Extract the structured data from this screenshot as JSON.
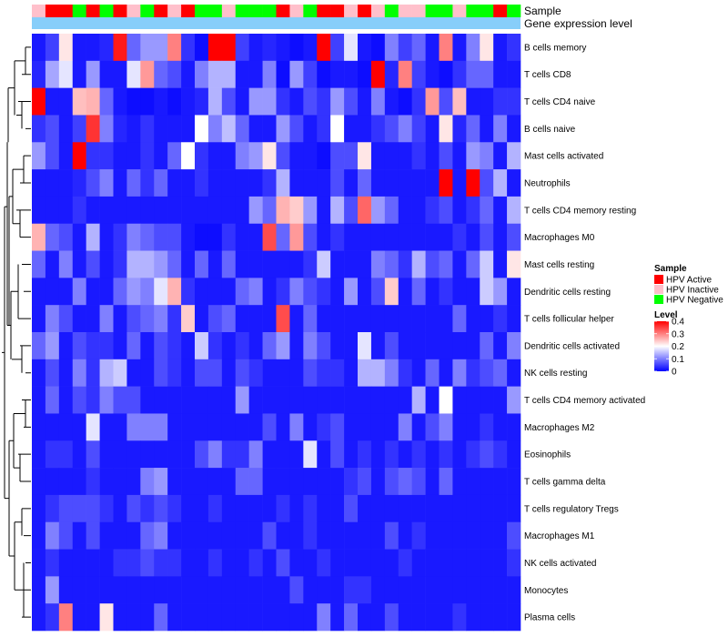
{
  "chart_data": {
    "type": "heatmap",
    "annotations": {
      "sample_label": "Sample",
      "expr_label": "Gene expression level",
      "sample_groups": [
        "Inactive",
        "Active",
        "Active",
        "Negative",
        "Active",
        "Negative",
        "Active",
        "Inactive",
        "Negative",
        "Active",
        "Inactive",
        "Active",
        "Negative",
        "Negative",
        "Inactive",
        "Negative",
        "Negative",
        "Negative",
        "Active",
        "Inactive",
        "Negative",
        "Active",
        "Active",
        "Inactive",
        "Active",
        "Inactive",
        "Negative",
        "Inactive",
        "Inactive",
        "Negative",
        "Negative",
        "Inactive",
        "Negative",
        "Negative",
        "Active",
        "Negative"
      ]
    },
    "rows": [
      "B cells memory",
      "T cells CD8",
      "T cells CD4 naive",
      "B cells naive",
      "Mast cells activated",
      "Neutrophils",
      "T cells CD4 memory resting",
      "Macrophages M0",
      "Mast cells resting",
      "Dendritic cells resting",
      "T cells follicular helper",
      "Dendritic cells activated",
      "NK cells resting",
      "T cells CD4 memory activated",
      "Macrophages M2",
      "Eosinophils",
      "T cells gamma delta",
      "T cells regulatory  Tregs",
      "Macrophages M1",
      "NK cells activated",
      "Monocytes",
      "Plasma cells"
    ],
    "values": [
      [
        0.02,
        0.05,
        0.22,
        0.02,
        0.02,
        0.03,
        0.38,
        0.08,
        0.12,
        0.12,
        0.3,
        0.04,
        0.01,
        0.4,
        0.4,
        0.05,
        0.02,
        0.03,
        0.02,
        0.01,
        0.02,
        0.4,
        0.05,
        0.18,
        0.02,
        0.01,
        0.1,
        0.05,
        0.08,
        0.02,
        0.3,
        0.02,
        0.1,
        0.22,
        0.02,
        0.04
      ],
      [
        0.03,
        0.13,
        0.18,
        0.02,
        0.12,
        0.02,
        0.02,
        0.18,
        0.28,
        0.08,
        0.06,
        0.02,
        0.1,
        0.14,
        0.14,
        0.02,
        0.02,
        0.1,
        0.01,
        0.12,
        0.05,
        0.01,
        0.02,
        0.02,
        0.01,
        0.4,
        0.03,
        0.3,
        0.05,
        0.02,
        0.01,
        0.04,
        0.08,
        0.08,
        0.02,
        0.02
      ],
      [
        0.4,
        0.02,
        0.02,
        0.25,
        0.26,
        0.08,
        0.02,
        0.01,
        0.01,
        0.02,
        0.01,
        0.02,
        0.03,
        0.14,
        0.06,
        0.02,
        0.12,
        0.12,
        0.04,
        0.02,
        0.06,
        0.04,
        0.12,
        0.06,
        0.02,
        0.1,
        0.02,
        0.01,
        0.04,
        0.28,
        0.06,
        0.25,
        0.02,
        0.02,
        0.04,
        0.04
      ],
      [
        0.04,
        0.06,
        0.02,
        0.05,
        0.36,
        0.1,
        0.03,
        0.02,
        0.04,
        0.02,
        0.02,
        0.02,
        0.2,
        0.1,
        0.15,
        0.08,
        0.02,
        0.02,
        0.12,
        0.06,
        0.02,
        0.04,
        0.2,
        0.02,
        0.02,
        0.04,
        0.06,
        0.1,
        0.05,
        0.02,
        0.22,
        0.03,
        0.08,
        0.02,
        0.1,
        0.02
      ],
      [
        0.12,
        0.06,
        0.02,
        0.4,
        0.04,
        0.04,
        0.02,
        0.02,
        0.04,
        0.02,
        0.08,
        0.2,
        0.04,
        0.02,
        0.02,
        0.1,
        0.12,
        0.22,
        0.06,
        0.02,
        0.02,
        0.01,
        0.06,
        0.06,
        0.22,
        0.02,
        0.02,
        0.02,
        0.04,
        0.02,
        0.06,
        0.02,
        0.12,
        0.1,
        0.02,
        0.14
      ],
      [
        0.02,
        0.02,
        0.02,
        0.03,
        0.06,
        0.1,
        0.02,
        0.08,
        0.04,
        0.08,
        0.02,
        0.02,
        0.04,
        0.02,
        0.02,
        0.02,
        0.02,
        0.04,
        0.14,
        0.02,
        0.02,
        0.02,
        0.06,
        0.02,
        0.08,
        0.02,
        0.02,
        0.02,
        0.02,
        0.02,
        0.4,
        0.02,
        0.4,
        0.06,
        0.14,
        0.02
      ],
      [
        0.02,
        0.02,
        0.02,
        0.04,
        0.02,
        0.02,
        0.02,
        0.02,
        0.02,
        0.02,
        0.02,
        0.02,
        0.02,
        0.02,
        0.02,
        0.02,
        0.12,
        0.08,
        0.26,
        0.24,
        0.12,
        0.02,
        0.14,
        0.06,
        0.32,
        0.12,
        0.08,
        0.02,
        0.02,
        0.04,
        0.06,
        0.02,
        0.04,
        0.08,
        0.02,
        0.14
      ],
      [
        0.26,
        0.08,
        0.06,
        0.02,
        0.14,
        0.02,
        0.04,
        0.1,
        0.08,
        0.06,
        0.06,
        0.02,
        0.01,
        0.01,
        0.04,
        0.02,
        0.02,
        0.34,
        0.08,
        0.28,
        0.06,
        0.02,
        0.04,
        0.02,
        0.02,
        0.02,
        0.02,
        0.02,
        0.02,
        0.02,
        0.02,
        0.04,
        0.02,
        0.06,
        0.02,
        0.06
      ],
      [
        0.08,
        0.02,
        0.1,
        0.02,
        0.06,
        0.02,
        0.04,
        0.14,
        0.14,
        0.12,
        0.08,
        0.02,
        0.08,
        0.02,
        0.08,
        0.02,
        0.02,
        0.02,
        0.02,
        0.02,
        0.04,
        0.16,
        0.02,
        0.02,
        0.02,
        0.1,
        0.08,
        0.04,
        0.14,
        0.06,
        0.08,
        0.02,
        0.08,
        0.16,
        0.02,
        0.22
      ],
      [
        0.02,
        0.02,
        0.02,
        0.1,
        0.02,
        0.02,
        0.08,
        0.12,
        0.1,
        0.18,
        0.26,
        0.04,
        0.02,
        0.02,
        0.02,
        0.08,
        0.1,
        0.02,
        0.04,
        0.1,
        0.06,
        0.04,
        0.02,
        0.12,
        0.02,
        0.06,
        0.24,
        0.02,
        0.08,
        0.02,
        0.04,
        0.02,
        0.02,
        0.16,
        0.12,
        0.02
      ],
      [
        0.02,
        0.1,
        0.06,
        0.02,
        0.02,
        0.1,
        0.02,
        0.06,
        0.08,
        0.1,
        0.04,
        0.24,
        0.02,
        0.06,
        0.08,
        0.02,
        0.02,
        0.02,
        0.34,
        0.02,
        0.08,
        0.02,
        0.02,
        0.02,
        0.02,
        0.02,
        0.02,
        0.02,
        0.02,
        0.02,
        0.02,
        0.08,
        0.02,
        0.02,
        0.04,
        0.02
      ],
      [
        0.08,
        0.12,
        0.02,
        0.06,
        0.04,
        0.04,
        0.02,
        0.08,
        0.02,
        0.06,
        0.04,
        0.02,
        0.16,
        0.04,
        0.02,
        0.04,
        0.02,
        0.08,
        0.12,
        0.02,
        0.1,
        0.06,
        0.02,
        0.02,
        0.18,
        0.02,
        0.06,
        0.02,
        0.02,
        0.02,
        0.02,
        0.02,
        0.02,
        0.08,
        0.02,
        0.1
      ],
      [
        0.02,
        0.06,
        0.02,
        0.1,
        0.04,
        0.14,
        0.16,
        0.02,
        0.02,
        0.06,
        0.04,
        0.02,
        0.06,
        0.06,
        0.02,
        0.06,
        0.04,
        0.02,
        0.02,
        0.02,
        0.06,
        0.04,
        0.04,
        0.02,
        0.14,
        0.14,
        0.1,
        0.04,
        0.02,
        0.08,
        0.02,
        0.1,
        0.04,
        0.06,
        0.08,
        0.02
      ],
      [
        0.02,
        0.08,
        0.02,
        0.06,
        0.04,
        0.1,
        0.06,
        0.06,
        0.02,
        0.02,
        0.02,
        0.02,
        0.02,
        0.02,
        0.02,
        0.12,
        0.02,
        0.02,
        0.02,
        0.02,
        0.02,
        0.02,
        0.02,
        0.02,
        0.02,
        0.02,
        0.02,
        0.02,
        0.14,
        0.02,
        0.2,
        0.02,
        0.02,
        0.02,
        0.02,
        0.12
      ],
      [
        0.02,
        0.02,
        0.02,
        0.02,
        0.18,
        0.02,
        0.02,
        0.1,
        0.1,
        0.1,
        0.02,
        0.02,
        0.02,
        0.02,
        0.02,
        0.02,
        0.02,
        0.06,
        0.02,
        0.1,
        0.02,
        0.04,
        0.06,
        0.02,
        0.02,
        0.02,
        0.02,
        0.1,
        0.02,
        0.06,
        0.1,
        0.02,
        0.02,
        0.04,
        0.02,
        0.02
      ],
      [
        0.02,
        0.04,
        0.04,
        0.02,
        0.06,
        0.02,
        0.02,
        0.02,
        0.02,
        0.02,
        0.02,
        0.02,
        0.06,
        0.1,
        0.04,
        0.04,
        0.1,
        0.02,
        0.02,
        0.02,
        0.18,
        0.02,
        0.06,
        0.02,
        0.04,
        0.02,
        0.04,
        0.02,
        0.04,
        0.02,
        0.04,
        0.02,
        0.04,
        0.06,
        0.04,
        0.02
      ],
      [
        0.02,
        0.02,
        0.02,
        0.02,
        0.04,
        0.02,
        0.02,
        0.02,
        0.1,
        0.12,
        0.02,
        0.02,
        0.02,
        0.02,
        0.02,
        0.08,
        0.08,
        0.02,
        0.02,
        0.02,
        0.02,
        0.02,
        0.02,
        0.04,
        0.06,
        0.02,
        0.06,
        0.08,
        0.06,
        0.02,
        0.08,
        0.02,
        0.02,
        0.02,
        0.02,
        0.02
      ],
      [
        0.02,
        0.04,
        0.06,
        0.06,
        0.06,
        0.04,
        0.02,
        0.06,
        0.04,
        0.06,
        0.04,
        0.02,
        0.02,
        0.04,
        0.02,
        0.02,
        0.02,
        0.02,
        0.04,
        0.02,
        0.04,
        0.02,
        0.02,
        0.06,
        0.02,
        0.02,
        0.02,
        0.02,
        0.02,
        0.02,
        0.02,
        0.02,
        0.02,
        0.02,
        0.02,
        0.02
      ],
      [
        0.02,
        0.1,
        0.06,
        0.02,
        0.06,
        0.02,
        0.02,
        0.02,
        0.08,
        0.1,
        0.02,
        0.02,
        0.02,
        0.02,
        0.02,
        0.02,
        0.02,
        0.06,
        0.02,
        0.02,
        0.04,
        0.02,
        0.02,
        0.02,
        0.02,
        0.02,
        0.06,
        0.02,
        0.04,
        0.02,
        0.02,
        0.02,
        0.02,
        0.02,
        0.02,
        0.06
      ],
      [
        0.02,
        0.04,
        0.02,
        0.02,
        0.02,
        0.02,
        0.04,
        0.04,
        0.06,
        0.04,
        0.04,
        0.02,
        0.02,
        0.04,
        0.02,
        0.02,
        0.04,
        0.02,
        0.06,
        0.02,
        0.02,
        0.04,
        0.02,
        0.02,
        0.02,
        0.02,
        0.02,
        0.04,
        0.02,
        0.02,
        0.02,
        0.02,
        0.02,
        0.02,
        0.02,
        0.04
      ],
      [
        0.02,
        0.12,
        0.02,
        0.02,
        0.02,
        0.02,
        0.02,
        0.02,
        0.02,
        0.02,
        0.02,
        0.02,
        0.02,
        0.02,
        0.02,
        0.02,
        0.02,
        0.02,
        0.02,
        0.06,
        0.02,
        0.02,
        0.02,
        0.04,
        0.04,
        0.02,
        0.02,
        0.02,
        0.02,
        0.02,
        0.02,
        0.02,
        0.02,
        0.02,
        0.02,
        0.02
      ],
      [
        0.02,
        0.04,
        0.3,
        0.02,
        0.02,
        0.22,
        0.02,
        0.02,
        0.02,
        0.08,
        0.02,
        0.02,
        0.02,
        0.02,
        0.02,
        0.02,
        0.02,
        0.02,
        0.02,
        0.02,
        0.02,
        0.1,
        0.02,
        0.08,
        0.02,
        0.02,
        0.06,
        0.02,
        0.02,
        0.02,
        0.02,
        0.04,
        0.02,
        0.02,
        0.02,
        0.02
      ]
    ],
    "color_scale": {
      "min": 0,
      "mid": 0.2,
      "max": 0.4,
      "low_color": "#0000ff",
      "mid_color": "#ffffff",
      "high_color": "#ff0000"
    }
  },
  "legend": {
    "sample": {
      "title": "Sample",
      "items": [
        {
          "key": "Active",
          "label": "HPV Active",
          "color": "#ff0000"
        },
        {
          "key": "Inactive",
          "label": "HPV Inactive",
          "color": "#ffc0cb"
        },
        {
          "key": "Negative",
          "label": "HPV Negative",
          "color": "#00ff00"
        }
      ]
    },
    "level": {
      "title": "Level",
      "ticks": [
        "0.4",
        "0.3",
        "0.2",
        "0.1",
        "0"
      ],
      "tick_values": [
        0.4,
        0.3,
        0.2,
        0.1,
        0
      ]
    }
  },
  "colors": {
    "expr_bar": "#87cefa",
    "dendrogram": "#000000"
  }
}
